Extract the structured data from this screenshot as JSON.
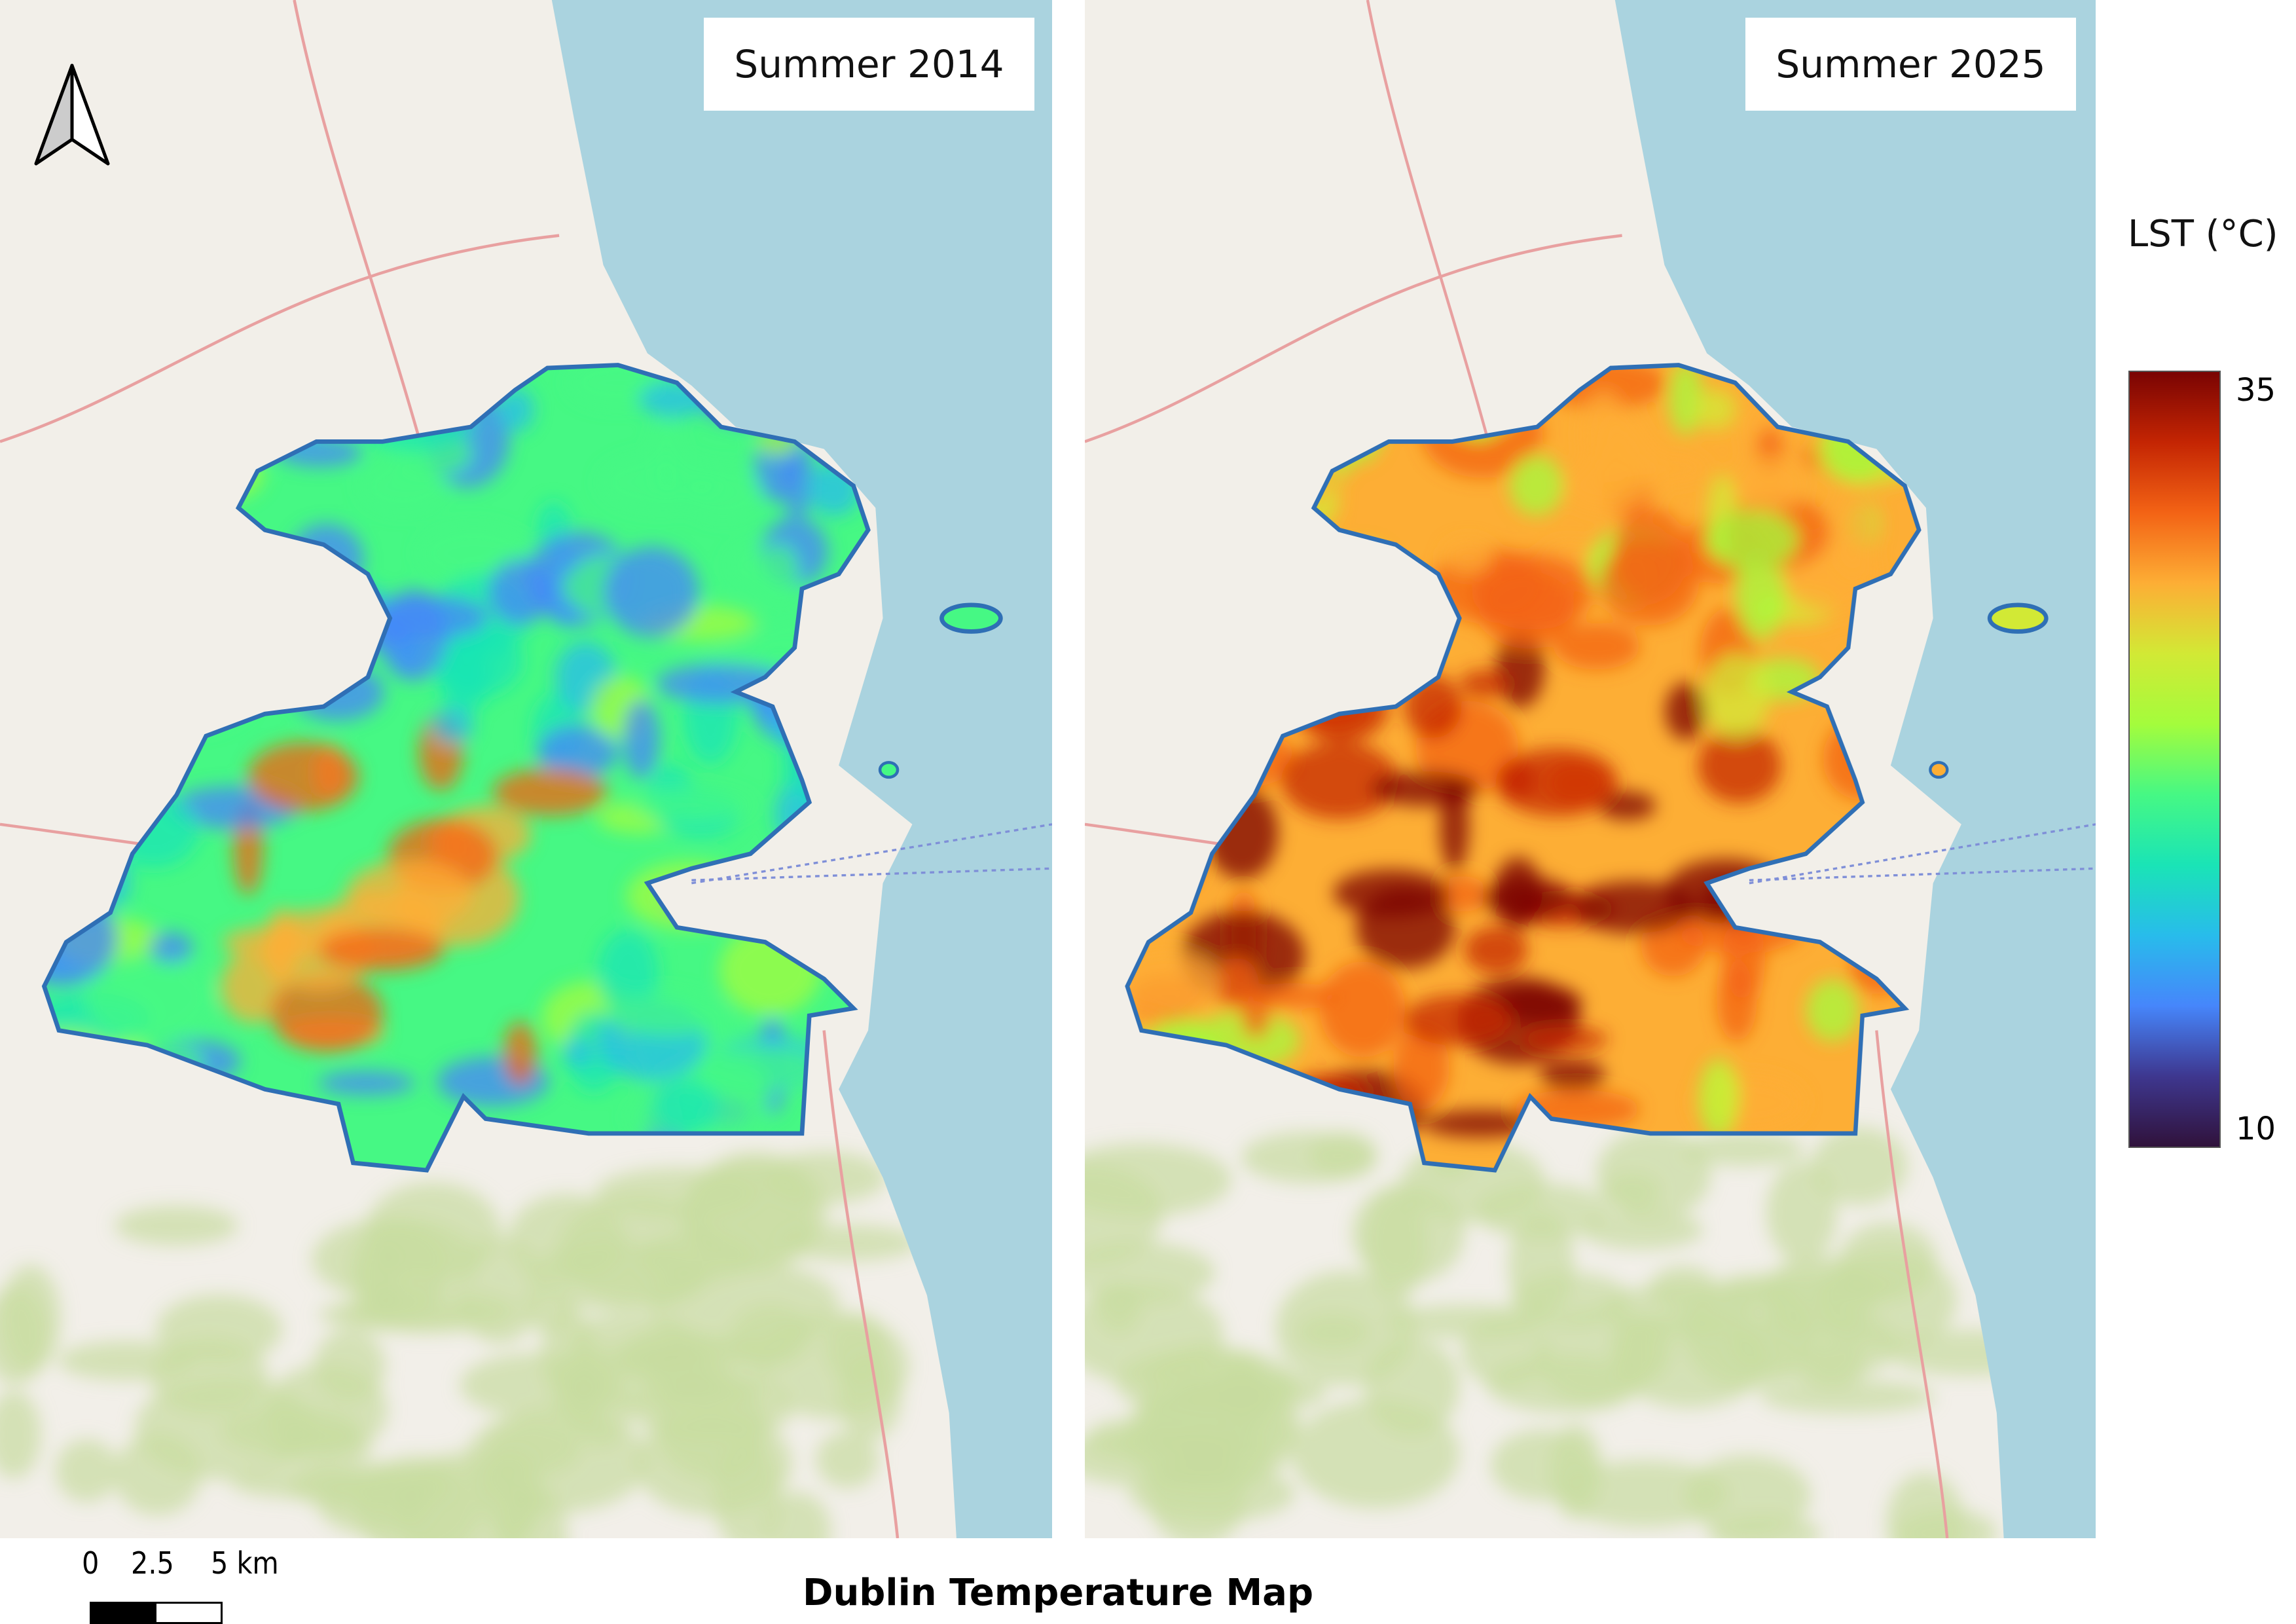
{
  "main_title": "Dublin Temperature Map",
  "panels": [
    {
      "title": "Summer 2014",
      "palette": "cool"
    },
    {
      "title": "Summer 2025",
      "palette": "hot"
    }
  ],
  "legend": {
    "title": "LST (°C)",
    "max": "35",
    "min": "10",
    "colors": [
      "#7a0403",
      "#c42503",
      "#f36315",
      "#fdae35",
      "#d2e935",
      "#a4fc3c",
      "#46f884",
      "#1ae4b6",
      "#28bceb",
      "#4686fb",
      "#3e378f",
      "#30123b"
    ]
  },
  "scale_bar": {
    "labels": [
      "0",
      "2.5",
      "5 km"
    ]
  },
  "north_arrow": "north-arrow-icon",
  "basemap_colors": {
    "land": "#f2efe9",
    "sea": "#aad3df",
    "park": "#c8dba0",
    "boundary": "#2f6fb5"
  }
}
